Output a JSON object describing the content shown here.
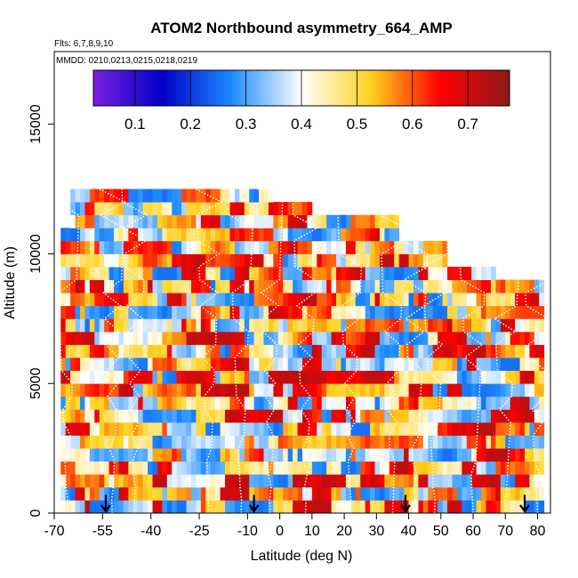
{
  "chart_data": {
    "type": "heatmap",
    "title": "ATOM2 Northbound asymmetry_664_AMP",
    "flights_label": "Flts: 6,7,8,9,10",
    "dates_label": "MMDD: 0210,0213,0215,0218,0219",
    "xlabel": "Latitude (deg N)",
    "ylabel": "Altitude (m)",
    "xlim": [
      -70,
      84
    ],
    "ylim": [
      0,
      17800
    ],
    "x_ticks": [
      -70,
      -55,
      -40,
      -25,
      -10,
      0,
      10,
      20,
      30,
      40,
      50,
      60,
      70,
      80
    ],
    "y_ticks": [
      0,
      5000,
      10000,
      15000
    ],
    "colorbar": {
      "ticks": [
        0.1,
        0.2,
        0.3,
        0.4,
        0.5,
        0.6,
        0.7
      ],
      "range": [
        0.025,
        0.775
      ],
      "colors": [
        "#7b1fe0",
        "#0000c8",
        "#1e8cff",
        "#ffffff",
        "#ffd21e",
        "#ff0000",
        "#8b1a1a"
      ]
    },
    "value_range": [
      0.25,
      0.72
    ],
    "altitude_bin_m": 500,
    "latitude_bin_deg": 1.5,
    "top_altitude_m": 12500,
    "profile_latitudes": [
      -66,
      -52,
      -45,
      -22,
      -12,
      -3,
      8,
      22,
      35,
      42,
      48,
      60,
      70,
      80
    ],
    "arrow_latitudes": [
      -54,
      -8,
      39,
      76
    ],
    "grid": false,
    "legend": "top"
  }
}
